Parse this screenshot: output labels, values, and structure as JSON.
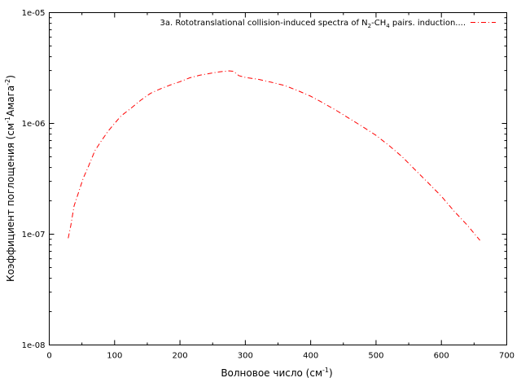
{
  "chart_data": {
    "type": "line",
    "title": "",
    "xlabel": "Волновое число (см",
    "xlabel_sup": "-1",
    "xlabel_tail": ")",
    "ylabel_main": "Коэффициент поглощения (см",
    "ylabel_sup1": "-1",
    "ylabel_mid": "Амага",
    "ylabel_sup2": "-2",
    "ylabel_tail": ")",
    "xlim": [
      0,
      700
    ],
    "ylim": [
      1e-08,
      1e-05
    ],
    "yscale": "log",
    "grid": false,
    "legend_position": "top-right",
    "x_ticks": [
      0,
      100,
      200,
      300,
      400,
      500,
      600,
      700
    ],
    "x_tick_labels": [
      "0",
      "100",
      "200",
      "300",
      "400",
      "500",
      "600",
      "700"
    ],
    "y_ticks": [
      1e-08,
      1e-07,
      1e-06,
      1e-05
    ],
    "y_tick_labels": [
      "1e-08",
      "1e-07",
      "1e-06",
      "1e-05"
    ],
    "legend": {
      "pre": "3a. Rototranslational collision-induced spectra of N",
      "sub1": "2",
      "mid": "-CH",
      "sub2": "4",
      "post": " pairs. induction...."
    },
    "series": [
      {
        "color": "#ff0000",
        "linestyle": "dash-dot",
        "x": [
          29,
          33,
          38,
          45,
          52,
          60,
          70,
          80,
          90,
          100,
          110,
          125,
          140,
          155,
          170,
          185,
          200,
          215,
          230,
          245,
          260,
          275,
          282,
          290,
          300,
          320,
          340,
          360,
          380,
          400,
          420,
          440,
          460,
          480,
          500,
          520,
          540,
          560,
          580,
          600,
          620,
          640,
          659
        ],
        "y": [
          9.2e-08,
          1.2e-07,
          1.8e-07,
          2.4e-07,
          3.2e-07,
          4.1e-07,
          5.7e-07,
          7e-07,
          8.5e-07,
          1e-06,
          1.17e-06,
          1.37e-06,
          1.62e-06,
          1.87e-06,
          2.05e-06,
          2.22e-06,
          2.38e-06,
          2.58e-06,
          2.72e-06,
          2.82e-06,
          2.92e-06,
          2.98e-06,
          2.95e-06,
          2.7e-06,
          2.6e-06,
          2.5e-06,
          2.35e-06,
          2.2e-06,
          1.98e-06,
          1.76e-06,
          1.52e-06,
          1.3e-06,
          1.1e-06,
          9.3e-07,
          7.8e-07,
          6.3e-07,
          5e-07,
          3.8e-07,
          2.9e-07,
          2.2e-07,
          1.6e-07,
          1.2e-07,
          8.8e-08
        ]
      }
    ]
  }
}
